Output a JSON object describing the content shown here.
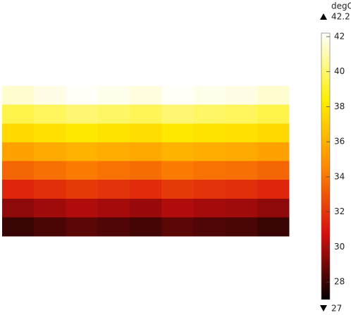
{
  "chart_data": {
    "type": "heatmap",
    "unit": "degC",
    "max": 42.2,
    "min": 27,
    "ylim": [
      27,
      42.2
    ],
    "yticks": [
      28,
      30,
      32,
      34,
      36,
      38,
      40,
      42
    ],
    "colormap": [
      "#000000",
      "#d80f0f",
      "#ff8a00",
      "#fff000",
      "#ffffff"
    ],
    "values": [
      [
        41.5,
        41.8,
        42.1,
        41.9,
        41.7,
        42.1,
        41.9,
        41.8,
        41.5
      ],
      [
        39.5,
        39.8,
        40.1,
        39.9,
        39.7,
        40.1,
        39.9,
        39.8,
        39.5
      ],
      [
        37.5,
        37.8,
        38.1,
        37.9,
        37.7,
        38.1,
        37.9,
        37.8,
        37.5
      ],
      [
        35.5,
        35.8,
        36.1,
        35.9,
        35.7,
        36.1,
        35.9,
        35.8,
        35.5
      ],
      [
        33.5,
        33.8,
        34.1,
        33.9,
        33.7,
        34.1,
        33.9,
        33.8,
        33.5
      ],
      [
        31.5,
        31.8,
        32.1,
        31.9,
        31.7,
        32.1,
        31.9,
        31.8,
        31.5
      ],
      [
        29.5,
        29.8,
        30.1,
        29.9,
        29.7,
        30.1,
        29.9,
        29.8,
        29.5
      ],
      [
        28,
        28.3,
        28.6,
        28.4,
        28.2,
        28.6,
        28.4,
        28.3,
        28
      ]
    ]
  }
}
